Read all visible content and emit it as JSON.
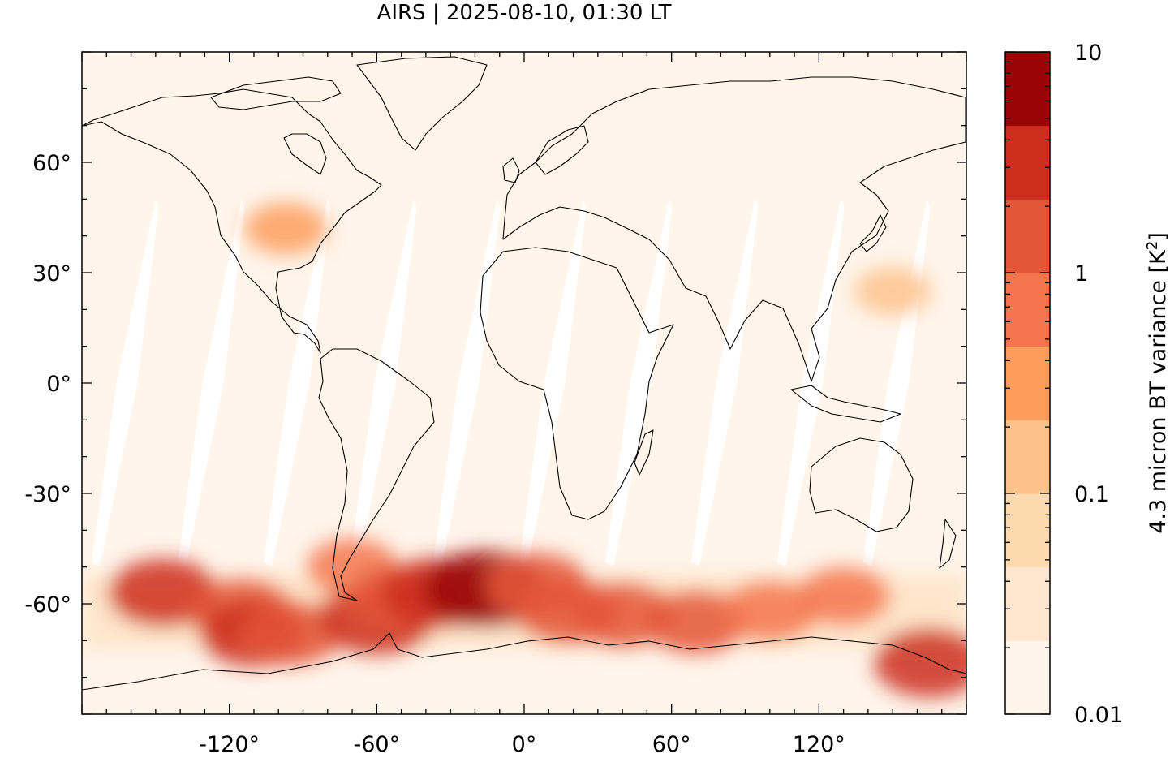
{
  "title": "AIRS | 2025-08-10, 01:30 LT",
  "map": {
    "projection": "equirectangular",
    "lon_range": [
      -180,
      180
    ],
    "lat_range": [
      -90,
      90
    ],
    "background_color": "#fff5eb",
    "gap_color": "#ffffff",
    "coastline_color": "#000000",
    "lat_tick_labels": [
      {
        "value": 60,
        "label": "60°"
      },
      {
        "value": 30,
        "label": "30°"
      },
      {
        "value": 0,
        "label": "0°"
      },
      {
        "value": -30,
        "label": "-30°"
      },
      {
        "value": -60,
        "label": "-60°"
      }
    ],
    "lon_tick_labels": [
      {
        "value": -120,
        "label": "-120°"
      },
      {
        "value": -60,
        "label": "-60°"
      },
      {
        "value": 0,
        "label": "0°"
      },
      {
        "value": 60,
        "label": "60°"
      },
      {
        "value": 120,
        "label": "120°"
      }
    ],
    "swath_gaps_lon_at_equator": [
      -162,
      -127,
      -92,
      -57,
      -23,
      12,
      47,
      82,
      117,
      152
    ],
    "hotspots": [
      {
        "lon": -147,
        "lat": -57,
        "value": 2.5
      },
      {
        "lon": -115,
        "lat": -62,
        "value": 1.6
      },
      {
        "lon": -110,
        "lat": -68,
        "value": 2.2
      },
      {
        "lon": -95,
        "lat": -68,
        "value": 1.4
      },
      {
        "lon": -60,
        "lat": -64,
        "value": 4.5
      },
      {
        "lon": -70,
        "lat": -50,
        "value": 0.5
      },
      {
        "lon": -50,
        "lat": -58,
        "value": 1.2
      },
      {
        "lon": -35,
        "lat": -57,
        "value": 3.5
      },
      {
        "lon": -16,
        "lat": -56,
        "value": 8.0
      },
      {
        "lon": 5,
        "lat": -55,
        "value": 1.5
      },
      {
        "lon": 18,
        "lat": -62,
        "value": 1.8
      },
      {
        "lon": 40,
        "lat": -63,
        "value": 1.6
      },
      {
        "lon": 70,
        "lat": -65,
        "value": 1.3
      },
      {
        "lon": 100,
        "lat": -62,
        "value": 0.8
      },
      {
        "lon": 130,
        "lat": -58,
        "value": 0.6
      },
      {
        "lon": 165,
        "lat": -76,
        "value": 3.0
      },
      {
        "lon": -97,
        "lat": 42,
        "value": 0.25
      },
      {
        "lon": 150,
        "lat": 25,
        "value": 0.15
      }
    ]
  },
  "colorbar": {
    "label": "4.3 micron BT variance [K",
    "label_superscript": "2",
    "label_suffix": "]",
    "scale": "log",
    "range": [
      0.01,
      10
    ],
    "tick_labels": [
      {
        "value": 10,
        "label": "10"
      },
      {
        "value": 1,
        "label": "1"
      },
      {
        "value": 0.1,
        "label": "0.1"
      },
      {
        "value": 0.01,
        "label": "0.01"
      }
    ],
    "colors": [
      "#fff5eb",
      "#fee6ce",
      "#fdd9b0",
      "#fdc28c",
      "#fd9d5d",
      "#f3754d",
      "#e45638",
      "#cd2e1d",
      "#990505"
    ]
  }
}
